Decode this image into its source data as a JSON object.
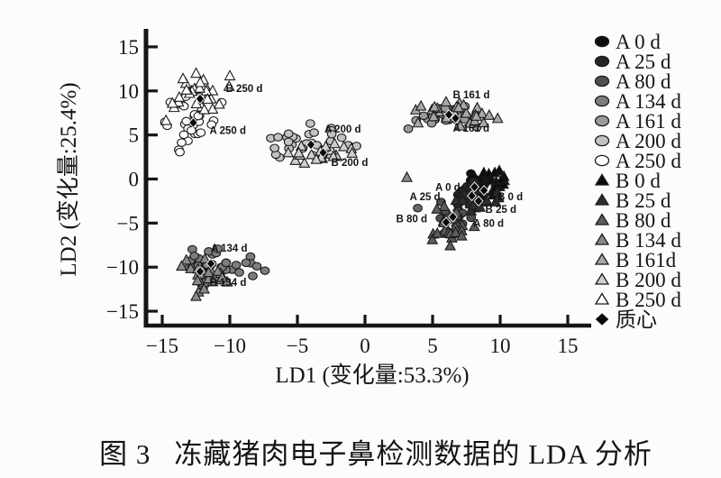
{
  "figure": {
    "caption_prefix": "图 3",
    "caption_text": "冻藏猪肉电子鼻检测数据的 LDA 分析"
  },
  "colors": {
    "ink": "#151515",
    "marker_outline": "#1a1a1a",
    "background": "#fcfcfa",
    "centroid_fill": "#0a0a0a"
  },
  "chart_data": {
    "type": "scatter",
    "title": "",
    "xlabel": "LD1 (变化量:53.3%)",
    "ylabel": "LD2 (变化量:25.4%)",
    "xlim": [
      -16.2,
      16.7
    ],
    "ylim": [
      -16.6,
      17.0
    ],
    "xticks": [
      -15,
      -10,
      -5,
      0,
      5,
      10,
      15
    ],
    "yticks": [
      -15,
      -10,
      -5,
      0,
      5,
      10,
      15
    ],
    "grid": false,
    "legend_position": "right-outside",
    "series": [
      {
        "name": "A 0 d",
        "marker": "circle",
        "fill": "#0d0d0d",
        "n": 22,
        "center": [
          8.2,
          -0.6
        ],
        "spread": [
          0.55,
          0.7
        ],
        "corr": 0
      },
      {
        "name": "A 25 d",
        "marker": "circle",
        "fill": "#262626",
        "n": 22,
        "center": [
          7.7,
          -1.6
        ],
        "spread": [
          0.6,
          0.7
        ],
        "corr": 0
      },
      {
        "name": "A 80 d",
        "marker": "circle",
        "fill": "#4f4f4f",
        "n": 22,
        "center": [
          6.7,
          -4.4
        ],
        "spread": [
          0.75,
          0.85
        ],
        "corr": 0
      },
      {
        "name": "A 134 d",
        "marker": "circle",
        "fill": "#7d7d7d",
        "n": 28,
        "center": [
          -11.6,
          -9.7
        ],
        "spread": [
          1.5,
          0.85
        ],
        "corr": 0
      },
      {
        "name": "A 161 d",
        "marker": "circle",
        "fill": "#9a9a9a",
        "n": 26,
        "center": [
          6.3,
          7.0
        ],
        "spread": [
          1.2,
          0.6
        ],
        "corr": 0
      },
      {
        "name": "A 200 d",
        "marker": "circle",
        "fill": "#c2c2c2",
        "n": 28,
        "center": [
          -4.2,
          4.2
        ],
        "spread": [
          1.7,
          1.0
        ],
        "corr": 0
      },
      {
        "name": "A 250 d",
        "marker": "circle",
        "fill": "#ffffff",
        "n": 30,
        "center": [
          -12.7,
          6.2
        ],
        "spread": [
          1.0,
          1.5
        ],
        "corr": 0
      },
      {
        "name": "B 0 d",
        "marker": "triangle",
        "fill": "#0d0d0d",
        "n": 22,
        "center": [
          9.0,
          -0.7
        ],
        "spread": [
          0.7,
          1.1
        ],
        "corr": 0.8
      },
      {
        "name": "B 25 d",
        "marker": "triangle",
        "fill": "#2e2e2e",
        "n": 22,
        "center": [
          8.3,
          -2.3
        ],
        "spread": [
          0.75,
          0.8
        ],
        "corr": 0
      },
      {
        "name": "B 80 d",
        "marker": "triangle",
        "fill": "#5d5d5d",
        "n": 22,
        "center": [
          6.3,
          -5.4
        ],
        "spread": [
          0.85,
          1.1
        ],
        "corr": 0
      },
      {
        "name": "B 134 d",
        "marker": "triangle",
        "fill": "#8a8a8a",
        "n": 26,
        "center": [
          -12.2,
          -10.7
        ],
        "spread": [
          1.1,
          1.0
        ],
        "corr": 0
      },
      {
        "name": "B 161 d",
        "marker": "triangle",
        "fill": "#a8a8a8",
        "n": 26,
        "center": [
          6.9,
          7.4
        ],
        "spread": [
          1.5,
          0.65
        ],
        "corr": 0
      },
      {
        "name": "B 200 d",
        "marker": "triangle",
        "fill": "#cfcfcf",
        "n": 26,
        "center": [
          -3.0,
          3.1
        ],
        "spread": [
          1.3,
          0.8
        ],
        "corr": 0
      },
      {
        "name": "B 250 d",
        "marker": "triangle",
        "fill": "#ffffff",
        "n": 30,
        "center": [
          -12.2,
          9.6
        ],
        "spread": [
          1.2,
          1.4
        ],
        "corr": 0
      }
    ],
    "extra_points": [
      {
        "marker": "triangle",
        "fill": "#8a8a8a",
        "x": 3.1,
        "y": 0.2
      },
      {
        "marker": "circle",
        "fill": "#6a6a6a",
        "x": 3.9,
        "y": -3.3
      },
      {
        "marker": "circle",
        "fill": "#9a9a9a",
        "x": 3.2,
        "y": 5.7
      },
      {
        "marker": "circle",
        "fill": "#7d7d7d",
        "x": -8.8,
        "y": -9.5
      },
      {
        "marker": "circle",
        "fill": "#7d7d7d",
        "x": -8.0,
        "y": -9.9
      },
      {
        "marker": "circle",
        "fill": "#7d7d7d",
        "x": -7.4,
        "y": -10.4
      },
      {
        "marker": "circle",
        "fill": "#7d7d7d",
        "x": -8.3,
        "y": -11.0
      },
      {
        "marker": "circle",
        "fill": "#7d7d7d",
        "x": -9.3,
        "y": -10.6
      },
      {
        "marker": "triangle",
        "fill": "#8a8a8a",
        "x": -12.5,
        "y": -13.3
      }
    ],
    "centroids": {
      "label": "质心",
      "marker": "diamond",
      "points": [
        [
          -12.2,
          9.1
        ],
        [
          -12.7,
          6.4
        ],
        [
          -4.0,
          3.9
        ],
        [
          -3.1,
          3.0
        ],
        [
          6.2,
          7.3
        ],
        [
          6.7,
          6.9
        ],
        [
          8.1,
          -0.9
        ],
        [
          8.8,
          -1.3
        ],
        [
          7.9,
          -1.9
        ],
        [
          8.4,
          -2.5
        ],
        [
          6.5,
          -4.3
        ],
        [
          6.0,
          -4.9
        ],
        [
          -11.4,
          -9.6
        ],
        [
          -12.2,
          -10.5
        ]
      ]
    },
    "annotations": [
      {
        "text": "B 250 d",
        "x": -10.3,
        "y": 10.3
      },
      {
        "text": "A 250 d",
        "x": -11.5,
        "y": 5.55
      },
      {
        "text": "A 200 d",
        "x": -3.0,
        "y": 5.7
      },
      {
        "text": "B 200 d",
        "x": -2.5,
        "y": 1.9
      },
      {
        "text": "B 161 d",
        "x": 6.5,
        "y": 9.55
      },
      {
        "text": "A 161 d",
        "x": 6.5,
        "y": 5.8
      },
      {
        "text": "A 0 d",
        "x": 5.2,
        "y": -0.9
      },
      {
        "text": "A 25 d",
        "x": 3.3,
        "y": -2.0
      },
      {
        "text": "B 0 d",
        "x": 9.8,
        "y": -2.0
      },
      {
        "text": "B 25 d",
        "x": 8.9,
        "y": -3.45
      },
      {
        "text": "B 80 d",
        "x": 2.3,
        "y": -4.5
      },
      {
        "text": "A 80 d",
        "x": 8.0,
        "y": -5.0
      },
      {
        "text": "A 134 d",
        "x": -11.4,
        "y": -7.85
      },
      {
        "text": "B 134 d",
        "x": -11.5,
        "y": -11.7
      }
    ],
    "legend": [
      {
        "label": "A 0 d",
        "marker": "circle",
        "fill": "#0d0d0d"
      },
      {
        "label": "A 25 d",
        "marker": "circle",
        "fill": "#262626"
      },
      {
        "label": "A 80 d",
        "marker": "circle",
        "fill": "#4f4f4f"
      },
      {
        "label": "A 134 d",
        "marker": "circle",
        "fill": "#7d7d7d"
      },
      {
        "label": "A 161 d",
        "marker": "circle",
        "fill": "#9a9a9a"
      },
      {
        "label": "A 200 d",
        "marker": "circle",
        "fill": "#c2c2c2"
      },
      {
        "label": "A 250 d",
        "marker": "circle",
        "fill": "#ffffff"
      },
      {
        "label": "B 0 d",
        "marker": "triangle",
        "fill": "#0d0d0d"
      },
      {
        "label": "B 25 d",
        "marker": "triangle",
        "fill": "#2e2e2e"
      },
      {
        "label": "B 80 d",
        "marker": "triangle",
        "fill": "#5d5d5d"
      },
      {
        "label": "B 134 d",
        "marker": "triangle",
        "fill": "#8a8a8a"
      },
      {
        "label": "B 161d",
        "marker": "triangle",
        "fill": "#a8a8a8"
      },
      {
        "label": "B 200 d",
        "marker": "triangle",
        "fill": "#cfcfcf"
      },
      {
        "label": "B 250 d",
        "marker": "triangle",
        "fill": "#ffffff"
      },
      {
        "label": "质心",
        "marker": "diamond",
        "fill": "#0a0a0a"
      }
    ]
  }
}
